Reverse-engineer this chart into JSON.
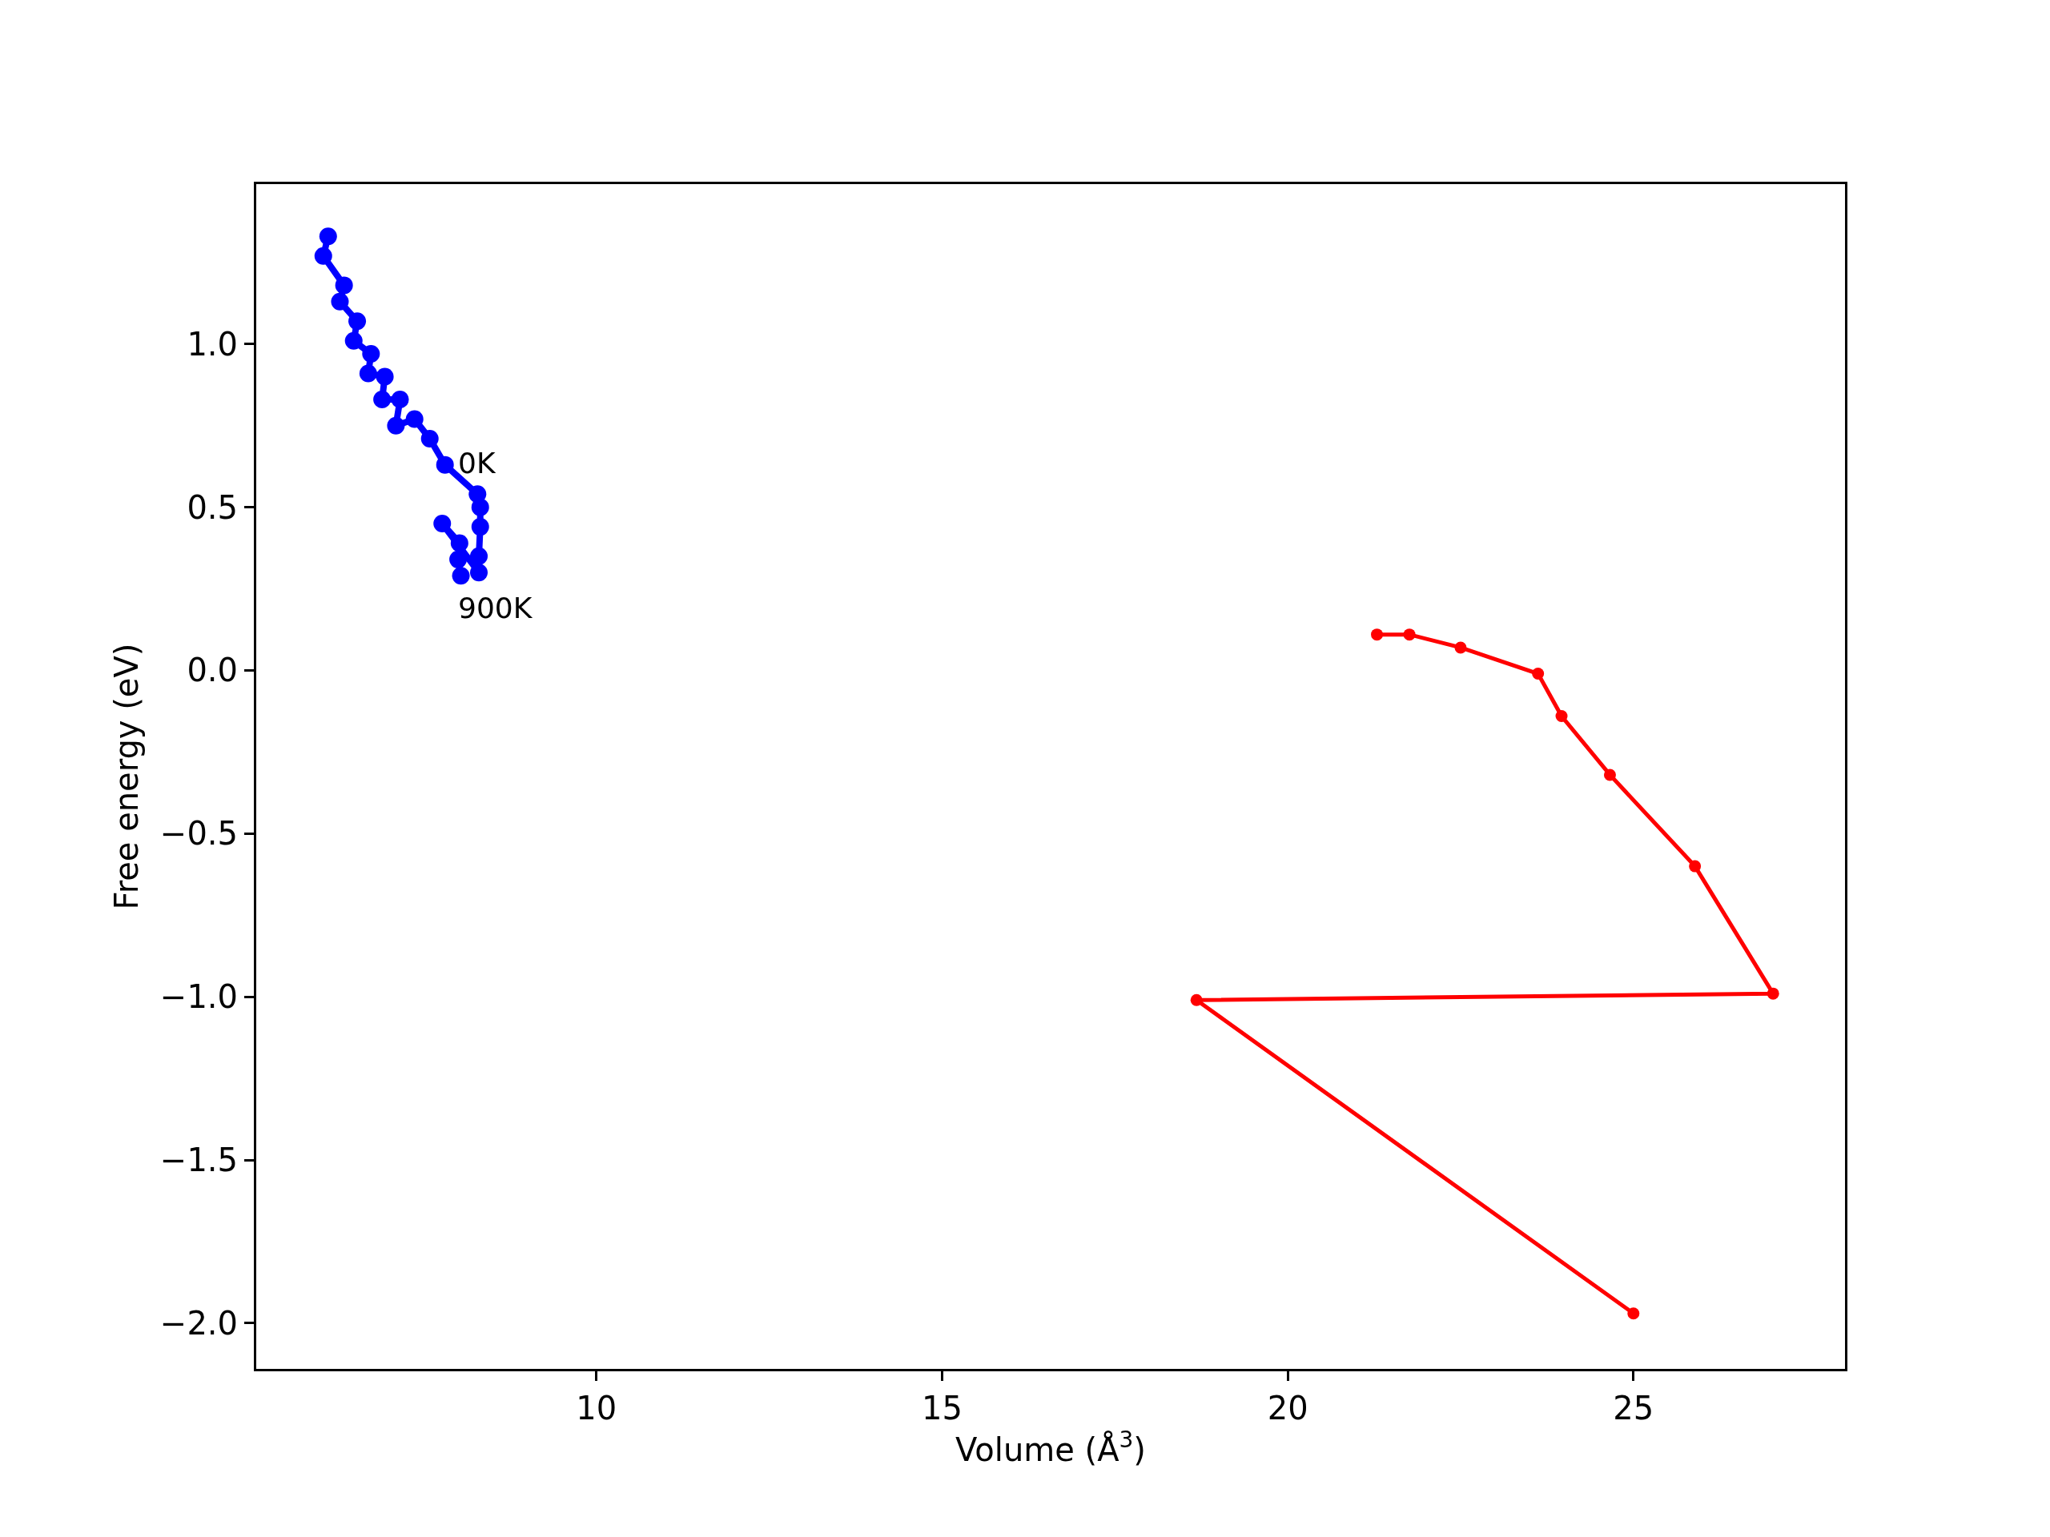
{
  "chart_data": {
    "type": "line",
    "xlabel": "Volume (Å$^{3}$)",
    "ylabel": "Free energy (eV)",
    "xlim": [
      5.08,
      28.06
    ],
    "ylim": [
      -2.14,
      1.49
    ],
    "xticks": [
      10,
      15,
      20,
      25
    ],
    "yticks": [
      {
        "value": -2.0,
        "label": "−2.0"
      },
      {
        "value": -1.5,
        "label": "−1.5"
      },
      {
        "value": -1.0,
        "label": "−1.0"
      },
      {
        "value": -0.5,
        "label": "−0.5"
      },
      {
        "value": 0.0,
        "label": "0.0"
      },
      {
        "value": 0.5,
        "label": "0.5"
      },
      {
        "value": 1.0,
        "label": "1.0"
      }
    ],
    "marker": "circle",
    "line_style": "solid",
    "series": [
      {
        "color": "#0000ff",
        "x": [
          6.12,
          6.05,
          6.35,
          6.29,
          6.54,
          6.49,
          6.74,
          6.7,
          6.94,
          6.9,
          7.16,
          7.1,
          7.37,
          7.59,
          7.81,
          8.28,
          8.32,
          8.32,
          8.3,
          8.3,
          7.77,
          8.02,
          8.0,
          8.04
        ],
        "values": [
          1.33,
          1.27,
          1.18,
          1.13,
          1.07,
          1.01,
          0.97,
          0.91,
          0.9,
          0.83,
          0.83,
          0.75,
          0.77,
          0.71,
          0.63,
          0.54,
          0.5,
          0.44,
          0.35,
          0.3,
          0.45,
          0.39,
          0.34,
          0.29
        ]
      },
      {
        "color": "#ff0000",
        "x": [
          21.29,
          21.76,
          22.5,
          23.62,
          23.96,
          24.66,
          25.89,
          27.02,
          18.68,
          25.0
        ],
        "values": [
          0.11,
          0.11,
          0.07,
          -0.01,
          -0.14,
          -0.32,
          -0.6,
          -0.99,
          -1.01,
          -1.97
        ]
      }
    ],
    "annotations": [
      "0K",
      "900K"
    ]
  }
}
